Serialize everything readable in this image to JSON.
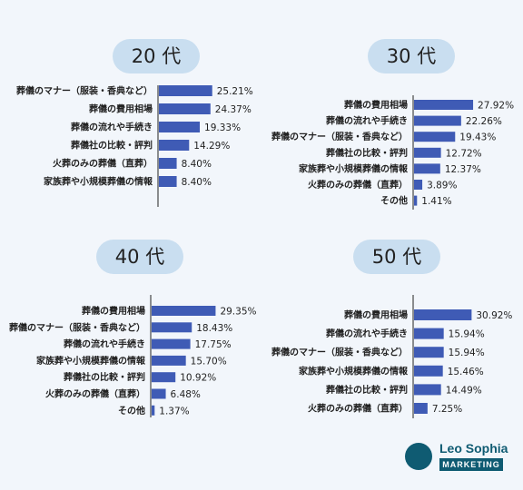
{
  "chart_data": [
    {
      "type": "bar",
      "title": "20 代",
      "categories": [
        "葬儀のマナー（服装・香典など）",
        "葬儀の費用相場",
        "葬儀の流れや手続き",
        "葬儀社の比較・評判",
        "火葬のみの葬儀（直葬）",
        "家族葬や小規模葬儀の情報"
      ],
      "values": [
        25.21,
        24.37,
        19.33,
        14.29,
        8.4,
        8.4
      ],
      "value_labels": [
        "25.21%",
        "24.37%",
        "19.33%",
        "14.29%",
        "8.40%",
        "8.40%"
      ]
    },
    {
      "type": "bar",
      "title": "30 代",
      "categories": [
        "葬儀の費用相場",
        "葬儀の流れや手続き",
        "葬儀のマナー（服装・香典など）",
        "葬儀社の比較・評判",
        "家族葬や小規模葬儀の情報",
        "火葬のみの葬儀（直葬）",
        "その他"
      ],
      "values": [
        27.92,
        22.26,
        19.43,
        12.72,
        12.37,
        3.89,
        1.41
      ],
      "value_labels": [
        "27.92%",
        "22.26%",
        "19.43%",
        "12.72%",
        "12.37%",
        "3.89%",
        "1.41%"
      ]
    },
    {
      "type": "bar",
      "title": "40 代",
      "categories": [
        "葬儀の費用相場",
        "葬儀のマナー（服装・香典など）",
        "葬儀の流れや手続き",
        "家族葬や小規模葬儀の情報",
        "葬儀社の比較・評判",
        "火葬のみの葬儀（直葬）",
        "その他"
      ],
      "values": [
        29.35,
        18.43,
        17.75,
        15.7,
        10.92,
        6.48,
        1.37
      ],
      "value_labels": [
        "29.35%",
        "18.43%",
        "17.75%",
        "15.70%",
        "10.92%",
        "6.48%",
        "1.37%"
      ]
    },
    {
      "type": "bar",
      "title": "50 代",
      "categories": [
        "葬儀の費用相場",
        "葬儀の流れや手続き",
        "葬儀のマナー（服装・香典など）",
        "家族葬や小規模葬儀の情報",
        "葬儀社の比較・評判",
        "火葬のみの葬儀（直葬）"
      ],
      "values": [
        30.92,
        15.94,
        15.94,
        15.46,
        14.49,
        7.25
      ],
      "value_labels": [
        "30.92%",
        "15.94%",
        "15.94%",
        "15.46%",
        "14.49%",
        "7.25%"
      ]
    }
  ],
  "colors": {
    "bar": "#3f5bb5",
    "axis": "#222222",
    "pill": "#c9def0",
    "background": "#f2f6fb",
    "brand": "#0f5b72"
  },
  "logo": {
    "name": "Leo Sophia",
    "sub": "MARKETING",
    "icon": "lion-icon"
  }
}
